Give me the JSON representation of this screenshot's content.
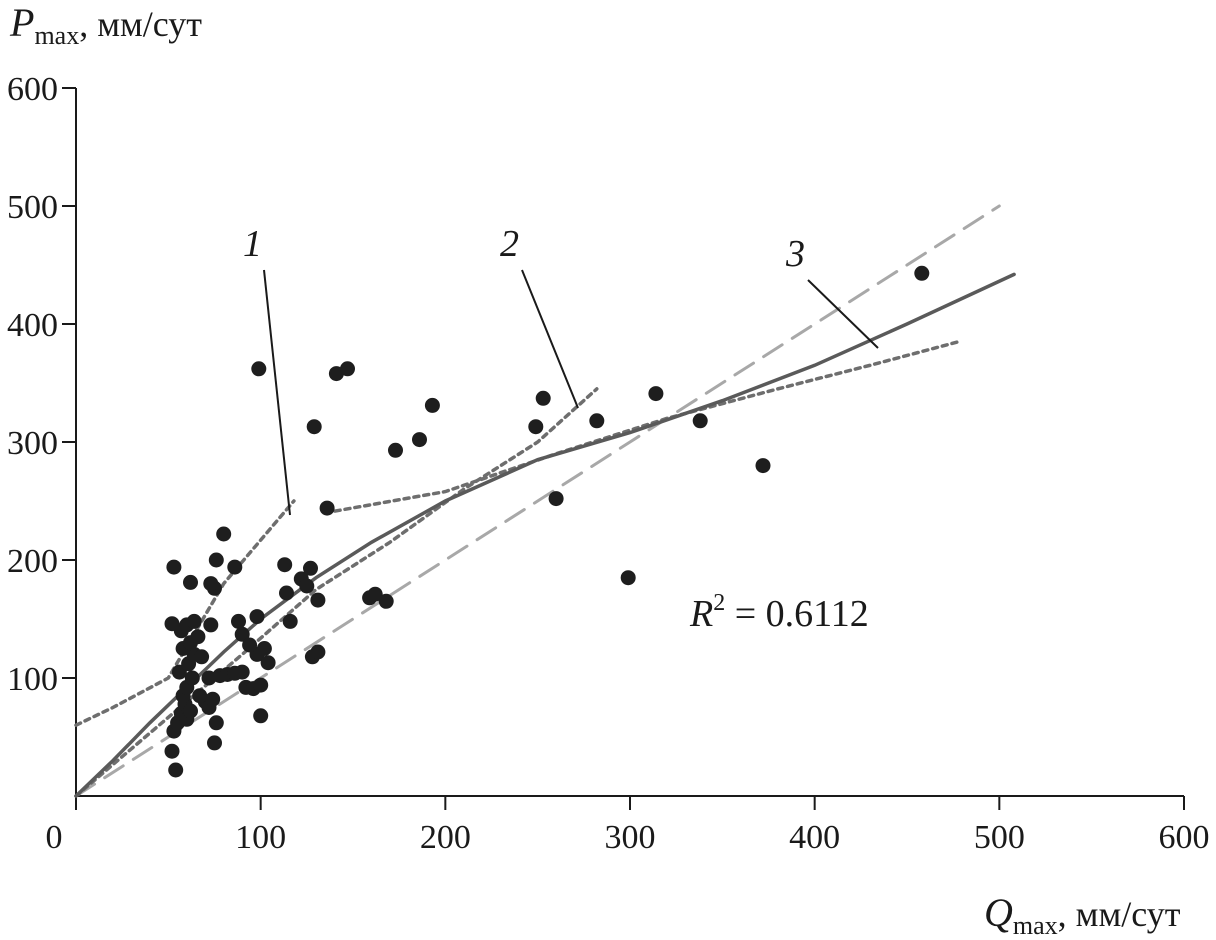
{
  "chart_data": {
    "type": "scatter",
    "title": "",
    "xlabel": {
      "symbol": "Q",
      "subscript": "max",
      "unit": ", мм/сут"
    },
    "ylabel": {
      "symbol": "P",
      "subscript": "max",
      "unit": ", мм/сут"
    },
    "xlim": [
      0,
      600
    ],
    "ylim": [
      0,
      600
    ],
    "xticks": [
      "0",
      "100",
      "200",
      "300",
      "400",
      "500",
      "600"
    ],
    "yticks": [
      "100",
      "200",
      "300",
      "400",
      "500",
      "600"
    ],
    "grid": false,
    "legend": "none",
    "annotation": {
      "r2_symbol": "R",
      "r2_sup": "2",
      "r2_text": " = 0.6112"
    },
    "curve_labels": [
      "1",
      "2",
      "3"
    ],
    "points": [
      {
        "x": 54,
        "y": 22
      },
      {
        "x": 52,
        "y": 38
      },
      {
        "x": 53,
        "y": 55
      },
      {
        "x": 55,
        "y": 62
      },
      {
        "x": 57,
        "y": 70
      },
      {
        "x": 59,
        "y": 78
      },
      {
        "x": 60,
        "y": 65
      },
      {
        "x": 62,
        "y": 72
      },
      {
        "x": 58,
        "y": 85
      },
      {
        "x": 60,
        "y": 92
      },
      {
        "x": 63,
        "y": 100
      },
      {
        "x": 56,
        "y": 105
      },
      {
        "x": 61,
        "y": 112
      },
      {
        "x": 64,
        "y": 120
      },
      {
        "x": 58,
        "y": 125
      },
      {
        "x": 62,
        "y": 130
      },
      {
        "x": 66,
        "y": 135
      },
      {
        "x": 57,
        "y": 140
      },
      {
        "x": 60,
        "y": 145
      },
      {
        "x": 52,
        "y": 146
      },
      {
        "x": 64,
        "y": 148
      },
      {
        "x": 68,
        "y": 118
      },
      {
        "x": 70,
        "y": 80
      },
      {
        "x": 72,
        "y": 75
      },
      {
        "x": 74,
        "y": 82
      },
      {
        "x": 76,
        "y": 62
      },
      {
        "x": 75,
        "y": 45
      },
      {
        "x": 67,
        "y": 85
      },
      {
        "x": 72,
        "y": 100
      },
      {
        "x": 78,
        "y": 102
      },
      {
        "x": 82,
        "y": 103
      },
      {
        "x": 86,
        "y": 104
      },
      {
        "x": 90,
        "y": 105
      },
      {
        "x": 92,
        "y": 92
      },
      {
        "x": 96,
        "y": 91
      },
      {
        "x": 100,
        "y": 94
      },
      {
        "x": 98,
        "y": 120
      },
      {
        "x": 102,
        "y": 125
      },
      {
        "x": 104,
        "y": 113
      },
      {
        "x": 100,
        "y": 68
      },
      {
        "x": 88,
        "y": 148
      },
      {
        "x": 90,
        "y": 137
      },
      {
        "x": 94,
        "y": 128
      },
      {
        "x": 98,
        "y": 152
      },
      {
        "x": 73,
        "y": 145
      },
      {
        "x": 75,
        "y": 176
      },
      {
        "x": 73,
        "y": 180
      },
      {
        "x": 76,
        "y": 200
      },
      {
        "x": 62,
        "y": 181
      },
      {
        "x": 53,
        "y": 194
      },
      {
        "x": 86,
        "y": 194
      },
      {
        "x": 80,
        "y": 222
      },
      {
        "x": 99,
        "y": 362
      },
      {
        "x": 113,
        "y": 196
      },
      {
        "x": 114,
        "y": 172
      },
      {
        "x": 116,
        "y": 148
      },
      {
        "x": 122,
        "y": 184
      },
      {
        "x": 125,
        "y": 178
      },
      {
        "x": 127,
        "y": 193
      },
      {
        "x": 131,
        "y": 166
      },
      {
        "x": 128,
        "y": 118
      },
      {
        "x": 131,
        "y": 122
      },
      {
        "x": 129,
        "y": 313
      },
      {
        "x": 136,
        "y": 244
      },
      {
        "x": 141,
        "y": 358
      },
      {
        "x": 147,
        "y": 362
      },
      {
        "x": 159,
        "y": 168
      },
      {
        "x": 162,
        "y": 171
      },
      {
        "x": 168,
        "y": 165
      },
      {
        "x": 173,
        "y": 293
      },
      {
        "x": 186,
        "y": 302
      },
      {
        "x": 193,
        "y": 331
      },
      {
        "x": 249,
        "y": 313
      },
      {
        "x": 253,
        "y": 337
      },
      {
        "x": 260,
        "y": 252
      },
      {
        "x": 282,
        "y": 318
      },
      {
        "x": 299,
        "y": 185
      },
      {
        "x": 314,
        "y": 341
      },
      {
        "x": 338,
        "y": 318
      },
      {
        "x": 372,
        "y": 280
      },
      {
        "x": 458,
        "y": 443
      }
    ],
    "series": [
      {
        "style": "dashed",
        "x": [
          0,
          50,
          100,
          150,
          200,
          250,
          300,
          350,
          400,
          450,
          500
        ],
        "y": [
          0,
          50,
          100,
          150,
          200,
          250,
          300,
          350,
          400,
          450,
          500
        ]
      },
      {
        "style": "dotted",
        "x": [
          0,
          20,
          50,
          80,
          118
        ],
        "y": [
          60,
          75,
          100,
          180,
          250
        ]
      },
      {
        "style": "dotted",
        "x": [
          0,
          30,
          60,
          90,
          130,
          170,
          210,
          250,
          282
        ],
        "y": [
          0,
          40,
          80,
          120,
          175,
          215,
          260,
          300,
          345
        ]
      },
      {
        "style": "dotted",
        "x": [
          135,
          200,
          260,
          320,
          380,
          430,
          478
        ],
        "y": [
          240,
          258,
          290,
          320,
          345,
          365,
          385
        ]
      },
      {
        "style": "solid",
        "x": [
          0,
          20,
          40,
          60,
          80,
          100,
          130,
          160,
          200,
          250,
          300,
          350,
          400,
          450,
          508
        ],
        "y": [
          0,
          30,
          62,
          92,
          122,
          150,
          185,
          215,
          250,
          285,
          308,
          335,
          365,
          400,
          442
        ]
      }
    ]
  }
}
